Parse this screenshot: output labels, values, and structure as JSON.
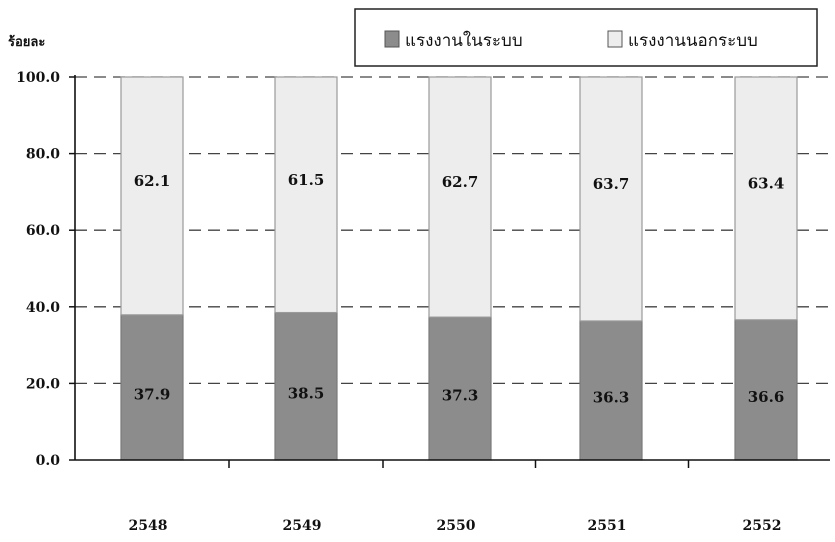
{
  "chart_data": {
    "type": "bar",
    "stacked": true,
    "ylabel": "ร้อยละ",
    "ylim": [
      0,
      100
    ],
    "yticks": [
      "0.0",
      "20.0",
      "40.0",
      "60.0",
      "80.0",
      "100.0"
    ],
    "grid": "dashed horizontal",
    "legend_position": "top-right",
    "categories": [
      "2548",
      "2549",
      "2550",
      "2551",
      "2552"
    ],
    "series": [
      {
        "name": "แรงงานในระบบ",
        "color": "#8c8c8c",
        "values": [
          37.9,
          38.5,
          37.3,
          36.3,
          36.6
        ]
      },
      {
        "name": "แรงงานนอกระบบ",
        "color": "#ededed",
        "values": [
          62.1,
          61.5,
          62.7,
          63.7,
          63.4
        ]
      }
    ],
    "value_labels": [
      [
        "37.9",
        "38.5",
        "37.3",
        "36.3",
        "36.6"
      ],
      [
        "62.1",
        "61.5",
        "62.7",
        "63.7",
        "63.4"
      ]
    ]
  }
}
